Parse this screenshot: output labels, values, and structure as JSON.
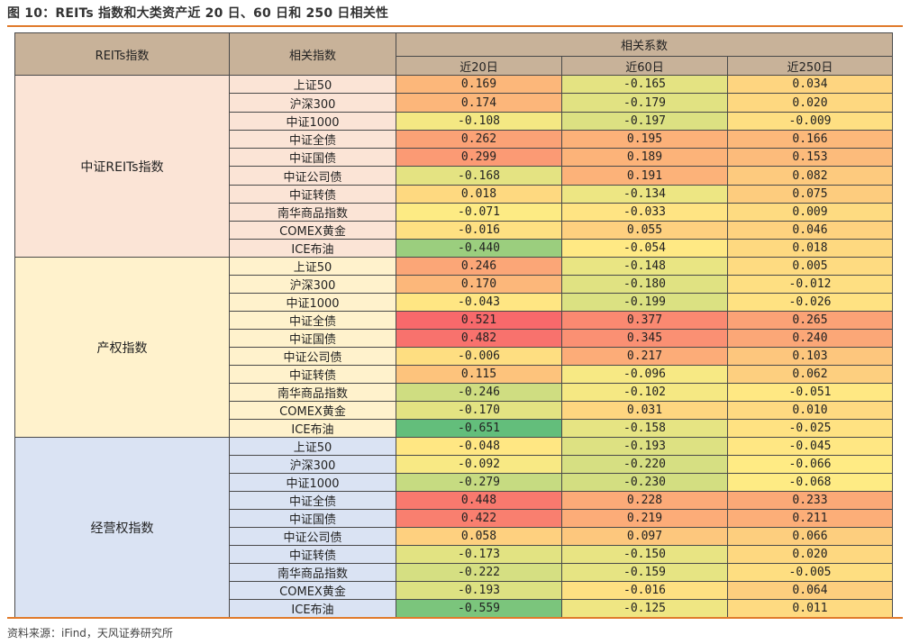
{
  "title": "图 10：REITs 指数和大类资产近 20 日、60 日和 250 日相关性",
  "source": "资料来源：iFind，天风证券研究所",
  "headers": {
    "reits_index": "REITs指数",
    "related_index": "相关指数",
    "corr": "相关系数",
    "periods": [
      "近20日",
      "近60日",
      "近250日"
    ]
  },
  "groups": [
    {
      "name": "中证REITs指数",
      "color": "#fbe4d6",
      "rows": [
        {
          "index": "上证50",
          "values": [
            "0.169",
            "-0.165",
            "0.034"
          ]
        },
        {
          "index": "沪深300",
          "values": [
            "0.174",
            "-0.179",
            "0.020"
          ]
        },
        {
          "index": "中证1000",
          "values": [
            "-0.108",
            "-0.197",
            "-0.009"
          ]
        },
        {
          "index": "中证全债",
          "values": [
            "0.262",
            "0.195",
            "0.166"
          ]
        },
        {
          "index": "中证国债",
          "values": [
            "0.299",
            "0.189",
            "0.153"
          ]
        },
        {
          "index": "中证公司债",
          "values": [
            "-0.168",
            "0.191",
            "0.082"
          ]
        },
        {
          "index": "中证转债",
          "values": [
            "0.018",
            "-0.134",
            "0.075"
          ]
        },
        {
          "index": "南华商品指数",
          "values": [
            "-0.071",
            "-0.033",
            "0.009"
          ]
        },
        {
          "index": "COMEX黄金",
          "values": [
            "-0.016",
            "0.055",
            "0.046"
          ]
        },
        {
          "index": "ICE布油",
          "values": [
            "-0.440",
            "-0.054",
            "0.018"
          ]
        }
      ]
    },
    {
      "name": "产权指数",
      "color": "#fff2cc",
      "rows": [
        {
          "index": "上证50",
          "values": [
            "0.246",
            "-0.148",
            "0.005"
          ]
        },
        {
          "index": "沪深300",
          "values": [
            "0.170",
            "-0.180",
            "-0.012"
          ]
        },
        {
          "index": "中证1000",
          "values": [
            "-0.043",
            "-0.199",
            "-0.026"
          ]
        },
        {
          "index": "中证全债",
          "values": [
            "0.521",
            "0.377",
            "0.265"
          ]
        },
        {
          "index": "中证国债",
          "values": [
            "0.482",
            "0.345",
            "0.240"
          ]
        },
        {
          "index": "中证公司债",
          "values": [
            "-0.006",
            "0.217",
            "0.103"
          ]
        },
        {
          "index": "中证转债",
          "values": [
            "0.115",
            "-0.096",
            "0.062"
          ]
        },
        {
          "index": "南华商品指数",
          "values": [
            "-0.246",
            "-0.102",
            "-0.051"
          ]
        },
        {
          "index": "COMEX黄金",
          "values": [
            "-0.170",
            "0.031",
            "0.010"
          ]
        },
        {
          "index": "ICE布油",
          "values": [
            "-0.651",
            "-0.158",
            "-0.025"
          ]
        }
      ]
    },
    {
      "name": "经营权指数",
      "color": "#dae3f3",
      "rows": [
        {
          "index": "上证50",
          "values": [
            "-0.048",
            "-0.193",
            "-0.045"
          ]
        },
        {
          "index": "沪深300",
          "values": [
            "-0.092",
            "-0.220",
            "-0.066"
          ]
        },
        {
          "index": "中证1000",
          "values": [
            "-0.279",
            "-0.230",
            "-0.068"
          ]
        },
        {
          "index": "中证全债",
          "values": [
            "0.448",
            "0.228",
            "0.233"
          ]
        },
        {
          "index": "中证国债",
          "values": [
            "0.422",
            "0.219",
            "0.211"
          ]
        },
        {
          "index": "中证公司债",
          "values": [
            "0.058",
            "0.097",
            "0.066"
          ]
        },
        {
          "index": "中证转债",
          "values": [
            "-0.173",
            "-0.150",
            "0.020"
          ]
        },
        {
          "index": "南华商品指数",
          "values": [
            "-0.222",
            "-0.159",
            "-0.005"
          ]
        },
        {
          "index": "COMEX黄金",
          "values": [
            "-0.193",
            "-0.016",
            "0.064"
          ]
        },
        {
          "index": "ICE布油",
          "values": [
            "-0.559",
            "-0.125",
            "0.011"
          ]
        }
      ]
    }
  ],
  "heatmap_colors": {
    "low": "#63be7b",
    "mid": "#ffeb84",
    "high": "#f8696b"
  },
  "heatmap_range": [
    -0.651,
    0.521
  ]
}
